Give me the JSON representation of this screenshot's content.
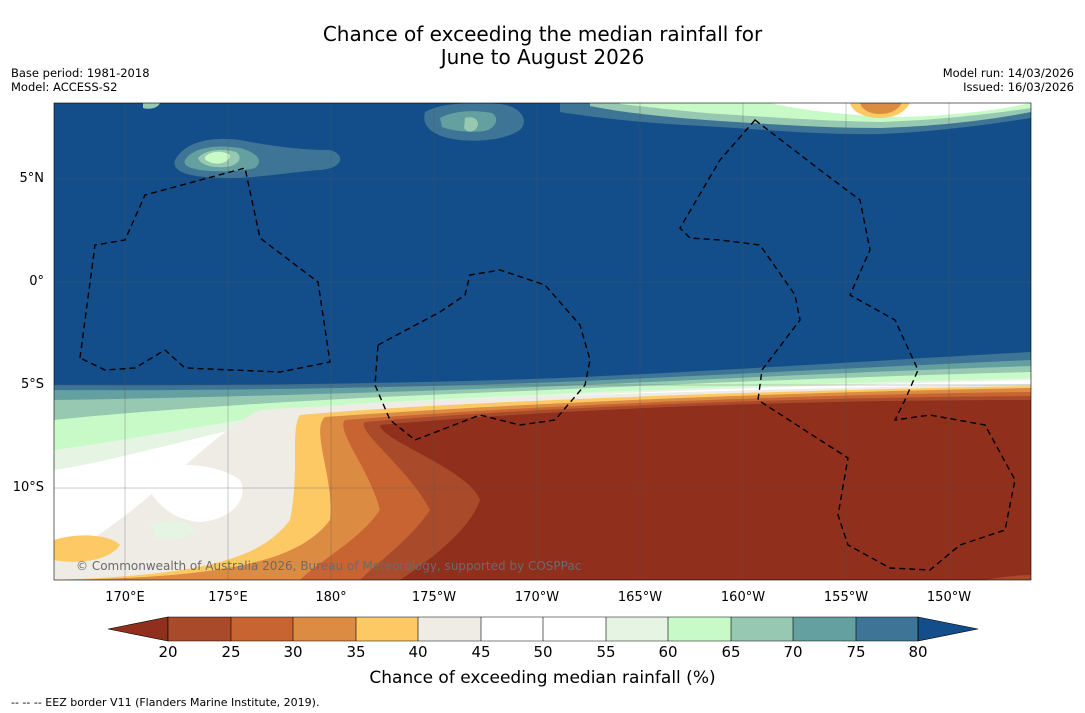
{
  "title": {
    "line1": "Chance of exceeding the median rainfall for",
    "line2": "June to August 2026"
  },
  "meta_left": {
    "base_period": "Base period: 1981-2018",
    "model": "Model: ACCESS-S2"
  },
  "meta_right": {
    "model_run": "Model run: 14/03/2026",
    "issued": "Issued: 16/03/2026"
  },
  "map": {
    "lat_labels": [
      "5°N",
      "0°",
      "5°S",
      "10°S"
    ],
    "lon_labels": [
      "170°E",
      "175°E",
      "180°",
      "175°W",
      "170°W",
      "165°W",
      "160°W",
      "155°W",
      "150°W"
    ],
    "copyright": "© Commonwealth of Australia 2026, Bureau of Meteorology, supported by COSPPac"
  },
  "colorbar": {
    "ticks": [
      "20",
      "25",
      "30",
      "35",
      "40",
      "45",
      "50",
      "55",
      "60",
      "65",
      "70",
      "75",
      "80"
    ],
    "label": "Chance of exceeding median rainfall (%)",
    "colors": {
      "below20": "#8f2f1c",
      "20-25": "#a94a2a",
      "25-30": "#c76432",
      "30-35": "#dc8b42",
      "35-40": "#fdc964",
      "40-45": "#efebe5",
      "45-50": "#ffffff",
      "50-55": "#ffffff",
      "55-60": "#e5f4e3",
      "60-65": "#c8fac8",
      "65-70": "#96c8b2",
      "70-75": "#64a0a0",
      "75-80": "#3e7496",
      "above80": "#134e8a"
    }
  },
  "footnote": "--  --  -- EEZ border V11 (Flanders Marine Institute, 2019)."
}
